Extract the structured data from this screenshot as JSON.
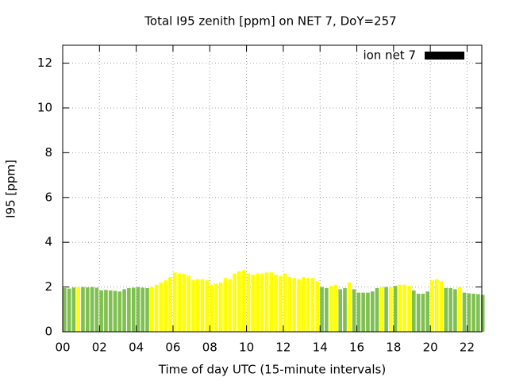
{
  "chart_data": {
    "type": "bar",
    "title": "Total I95 zenith [ppm] on NET 7, DoY=257",
    "x_label": "Time of day UTC (15-minute intervals)",
    "y_label": "I95 [ppm]",
    "x": [
      0,
      0.25,
      0.5,
      0.75,
      1,
      1.25,
      1.5,
      1.75,
      2,
      2.25,
      2.5,
      2.75,
      3,
      3.25,
      3.5,
      3.75,
      4,
      4.25,
      4.5,
      4.75,
      5,
      5.25,
      5.5,
      5.75,
      6,
      6.25,
      6.5,
      6.75,
      7,
      7.25,
      7.5,
      7.75,
      8,
      8.25,
      8.5,
      8.75,
      9,
      9.25,
      9.5,
      9.75,
      10,
      10.25,
      10.5,
      10.75,
      11,
      11.25,
      11.5,
      11.75,
      12,
      12.25,
      12.5,
      12.75,
      13,
      13.25,
      13.5,
      13.75,
      14,
      14.25,
      14.5,
      14.75,
      15,
      15.25,
      15.5,
      15.75,
      16,
      16.25,
      16.5,
      16.75,
      17,
      17.25,
      17.5,
      17.75,
      18,
      18.25,
      18.5,
      18.75,
      19,
      19.25,
      19.5,
      19.75,
      20,
      20.25,
      20.5,
      20.75,
      21,
      21.25,
      21.5,
      21.75,
      22,
      22.25,
      22.5,
      22.75
    ],
    "series": [
      {
        "name": "ion net 7",
        "color": "#000000",
        "values": [
          1.95,
          1.93,
          1.98,
          2.0,
          2.0,
          1.98,
          2.0,
          1.97,
          1.85,
          1.87,
          1.85,
          1.83,
          1.8,
          1.9,
          1.95,
          1.97,
          2.0,
          1.97,
          1.95,
          2.0,
          2.1,
          2.2,
          2.3,
          2.45,
          2.65,
          2.6,
          2.58,
          2.5,
          2.3,
          2.35,
          2.35,
          2.3,
          2.1,
          2.15,
          2.2,
          2.4,
          2.35,
          2.6,
          2.7,
          2.75,
          2.6,
          2.55,
          2.6,
          2.6,
          2.65,
          2.65,
          2.55,
          2.5,
          2.6,
          2.45,
          2.4,
          2.35,
          2.45,
          2.4,
          2.4,
          2.25,
          2.0,
          1.95,
          2.05,
          2.1,
          1.9,
          1.95,
          2.2,
          1.9,
          1.75,
          1.75,
          1.75,
          1.8,
          1.95,
          2.0,
          2.0,
          2.0,
          2.05,
          2.1,
          2.1,
          2.05,
          1.85,
          1.7,
          1.7,
          1.8,
          2.3,
          2.35,
          2.25,
          1.95,
          1.95,
          1.9,
          2.0,
          1.75,
          1.72,
          1.7,
          1.68,
          1.65
        ],
        "colors": [
          "#80c050",
          "#80c050",
          "#80c050",
          "#ffff00",
          "#80c050",
          "#80c050",
          "#80c050",
          "#80c050",
          "#80c050",
          "#80c050",
          "#80c050",
          "#80c050",
          "#80c050",
          "#80c050",
          "#80c050",
          "#80c050",
          "#80c050",
          "#80c050",
          "#80c050",
          "#ffff00",
          "#ffff00",
          "#ffff00",
          "#ffff00",
          "#ffff00",
          "#ffff00",
          "#ffff00",
          "#ffff00",
          "#ffff00",
          "#ffff00",
          "#ffff00",
          "#ffff00",
          "#ffff00",
          "#ffff00",
          "#ffff00",
          "#ffff00",
          "#ffff00",
          "#ffff00",
          "#ffff00",
          "#ffff00",
          "#ffff00",
          "#ffff00",
          "#ffff00",
          "#ffff00",
          "#ffff00",
          "#ffff00",
          "#ffff00",
          "#ffff00",
          "#ffff00",
          "#ffff00",
          "#ffff00",
          "#ffff00",
          "#ffff00",
          "#ffff00",
          "#ffff00",
          "#ffff00",
          "#ffff00",
          "#80c050",
          "#80c050",
          "#ffff00",
          "#ffff00",
          "#80c050",
          "#80c050",
          "#ffff00",
          "#80c050",
          "#80c050",
          "#80c050",
          "#80c050",
          "#80c050",
          "#80c050",
          "#ffff00",
          "#80c050",
          "#ffff00",
          "#80c050",
          "#ffff00",
          "#ffff00",
          "#ffff00",
          "#80c050",
          "#80c050",
          "#80c050",
          "#80c050",
          "#ffff00",
          "#ffff00",
          "#ffff00",
          "#80c050",
          "#80c050",
          "#80c050",
          "#ffff00",
          "#80c050",
          "#80c050",
          "#80c050",
          "#80c050",
          "#80c050"
        ]
      }
    ],
    "bar_width": 0.2,
    "xlim": [
      0,
      22.8
    ],
    "ylim": [
      0,
      12.8
    ],
    "xticks": [
      {
        "value": 0,
        "label": "00"
      },
      {
        "value": 2,
        "label": "02"
      },
      {
        "value": 4,
        "label": "04"
      },
      {
        "value": 6,
        "label": "06"
      },
      {
        "value": 8,
        "label": "08"
      },
      {
        "value": 10,
        "label": "10"
      },
      {
        "value": 12,
        "label": "12"
      },
      {
        "value": 14,
        "label": "14"
      },
      {
        "value": 16,
        "label": "16"
      },
      {
        "value": 18,
        "label": "18"
      },
      {
        "value": 20,
        "label": "20"
      },
      {
        "value": 22,
        "label": "22"
      }
    ],
    "yticks": [
      0,
      2,
      4,
      6,
      8,
      10,
      12
    ],
    "grid": true,
    "legend": "upper right"
  }
}
